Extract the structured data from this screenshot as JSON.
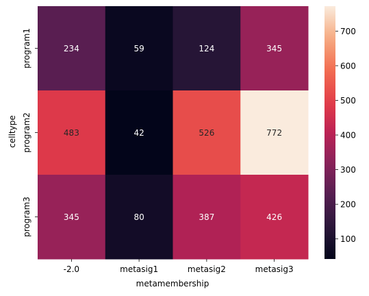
{
  "chart_data": {
    "type": "heatmap",
    "xlabel": "metamembership",
    "ylabel": "celltype",
    "x_categories": [
      "-2.0",
      "metasig1",
      "metasig2",
      "metasig3"
    ],
    "y_categories": [
      "program1",
      "program2",
      "program3"
    ],
    "values": [
      [
        234,
        59,
        124,
        345
      ],
      [
        483,
        42,
        526,
        772
      ],
      [
        345,
        80,
        387,
        426
      ]
    ],
    "colorbar": {
      "ticks": [
        100,
        200,
        300,
        400,
        500,
        600,
        700
      ],
      "vmin": 42,
      "vmax": 772
    },
    "colormap": "rocket",
    "legend": "colorbar-right",
    "grid": false
  }
}
